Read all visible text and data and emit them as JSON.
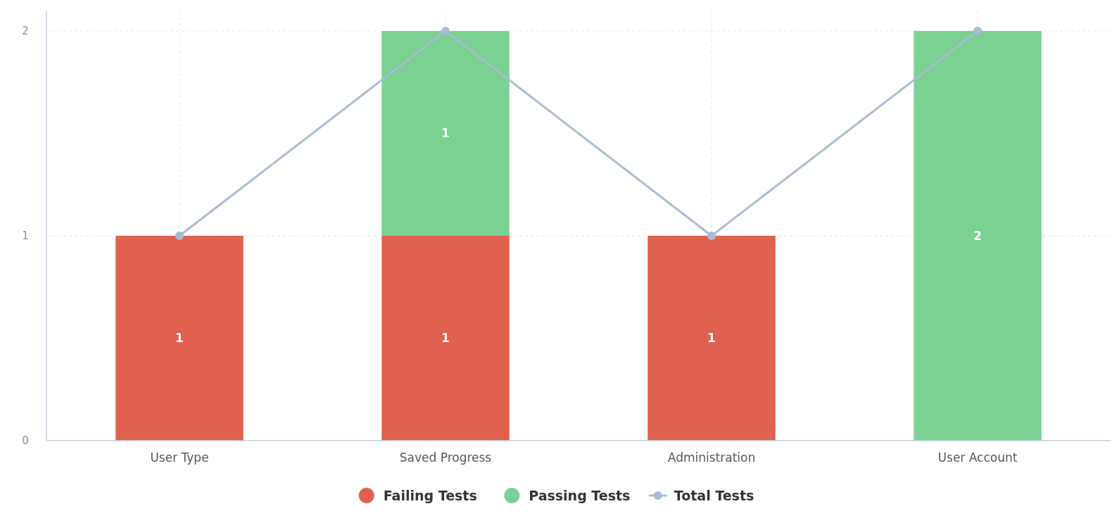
{
  "chart_data": {
    "type": "bar",
    "stacked": true,
    "categories": [
      "User Type",
      "Saved Progress",
      "Administration",
      "User Account"
    ],
    "series": [
      {
        "name": "Failing Tests",
        "color": "#e06150",
        "values": [
          1,
          1,
          1,
          0
        ],
        "value_labels": [
          "1",
          "1",
          "1",
          null
        ]
      },
      {
        "name": "Passing Tests",
        "color": "#7ad192",
        "values": [
          0,
          1,
          0,
          2
        ],
        "value_labels": [
          null,
          "1",
          null,
          "2"
        ]
      },
      {
        "name": "Total Tests",
        "type": "line",
        "color": "#a9bcd3",
        "values": [
          1,
          2,
          1,
          2
        ],
        "marker": "circle"
      }
    ],
    "ylim": [
      0,
      2
    ],
    "yticks": [
      0,
      1,
      2
    ],
    "grid": true,
    "legend": "bottom"
  }
}
